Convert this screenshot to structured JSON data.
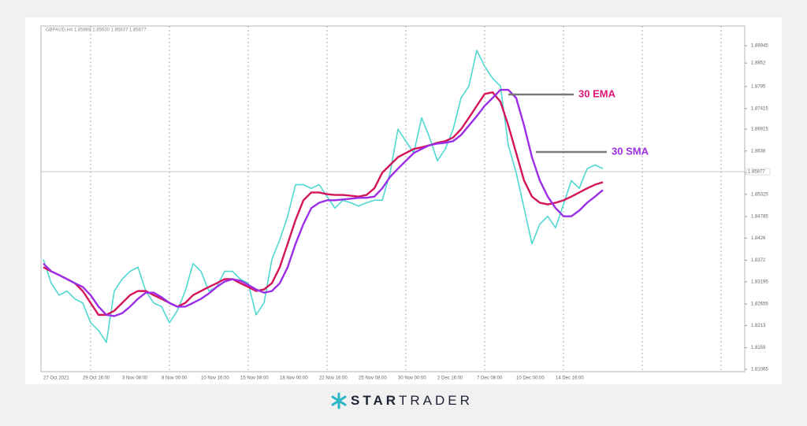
{
  "chart_data": {
    "type": "line",
    "header": "GBPAUD,H4 1.85868 1.85930 1.85837 1.85877",
    "categories": [
      "27 Oct 2021",
      null,
      null,
      null,
      null,
      "29 Oct 16:00",
      null,
      null,
      null,
      null,
      "3 Nov 08:00",
      null,
      null,
      null,
      null,
      "8 Nov 00:00",
      null,
      null,
      null,
      null,
      "10 Nov 16:00",
      null,
      null,
      null,
      null,
      "15 Nov 08:00",
      null,
      null,
      null,
      null,
      "18 Nov 00:00",
      null,
      null,
      null,
      null,
      "22 Nov 16:00",
      null,
      null,
      null,
      null,
      "25 Nov 08:00",
      null,
      null,
      null,
      null,
      "30 Nov 00:00",
      null,
      null,
      null,
      null,
      "2 Dec 16:00",
      null,
      null,
      null,
      null,
      "7 Dec 08:00",
      null,
      null,
      null,
      null,
      "10 Dec 00:00",
      null,
      null,
      null,
      null,
      "14 Dec 16:00",
      null,
      null,
      null,
      null,
      null,
      null
    ],
    "series": [
      {
        "name": "GBPAUD",
        "color": "#4fd8cf",
        "values": [
          1.8374,
          1.8316,
          1.8287,
          1.8297,
          1.8278,
          1.8268,
          1.822,
          1.8201,
          1.8172,
          1.8297,
          1.8326,
          1.8345,
          1.8355,
          1.8297,
          1.8268,
          1.8259,
          1.822,
          1.8249,
          1.8297,
          1.8364,
          1.8345,
          1.8297,
          1.8307,
          1.8345,
          1.8345,
          1.8326,
          1.8316,
          1.8239,
          1.8268,
          1.8374,
          1.8422,
          1.8479,
          1.8556,
          1.8556,
          1.8547,
          1.8556,
          1.8527,
          1.8499,
          1.8518,
          1.8512,
          1.8504,
          1.8512,
          1.8518,
          1.8518,
          1.8585,
          1.8691,
          1.8662,
          1.8633,
          1.8719,
          1.8671,
          1.8614,
          1.8643,
          1.8691,
          1.8767,
          1.8796,
          1.8883,
          1.8844,
          1.8815,
          1.8796,
          1.8652,
          1.8585,
          1.8499,
          1.8412,
          1.846,
          1.8479,
          1.8451,
          1.8508,
          1.8566,
          1.8547,
          1.8595,
          1.8604,
          1.8595
        ]
      },
      {
        "name": "30 EMA",
        "color": "#d4145a",
        "values": [
          1.8355,
          1.8345,
          1.8336,
          1.8326,
          1.8316,
          1.8297,
          1.8268,
          1.8239,
          1.8239,
          1.8249,
          1.8268,
          1.8287,
          1.8297,
          1.8297,
          1.8287,
          1.8278,
          1.8268,
          1.8259,
          1.8268,
          1.8287,
          1.8297,
          1.8307,
          1.8316,
          1.8326,
          1.8326,
          1.8316,
          1.8307,
          1.8297,
          1.8301,
          1.8316,
          1.8355,
          1.8412,
          1.847,
          1.8518,
          1.8537,
          1.8537,
          1.8533,
          1.8531,
          1.8531,
          1.8529,
          1.8527,
          1.8531,
          1.8547,
          1.8585,
          1.8604,
          1.8623,
          1.8633,
          1.8643,
          1.8647,
          1.8652,
          1.8658,
          1.8662,
          1.8671,
          1.8691,
          1.8719,
          1.8748,
          1.8777,
          1.8781,
          1.8758,
          1.87,
          1.8633,
          1.8566,
          1.8527,
          1.8512,
          1.8508,
          1.8512,
          1.8518,
          1.8527,
          1.8537,
          1.8547,
          1.8556,
          1.8562
        ]
      },
      {
        "name": "30 SMA",
        "color": "#9b2ee6",
        "values": [
          1.8364,
          1.8345,
          1.8336,
          1.8326,
          1.8316,
          1.8307,
          1.8287,
          1.8259,
          1.8239,
          1.8236,
          1.8243,
          1.8259,
          1.8278,
          1.8293,
          1.8293,
          1.8282,
          1.8268,
          1.8259,
          1.8259,
          1.8268,
          1.8278,
          1.8291,
          1.8307,
          1.832,
          1.8326,
          1.8322,
          1.8312,
          1.8301,
          1.8293,
          1.8297,
          1.8316,
          1.8355,
          1.8412,
          1.846,
          1.8499,
          1.8512,
          1.8518,
          1.8518,
          1.852,
          1.8522,
          1.8524,
          1.8524,
          1.8527,
          1.8547,
          1.8575,
          1.8595,
          1.8614,
          1.8633,
          1.8643,
          1.8652,
          1.8656,
          1.8658,
          1.8662,
          1.8677,
          1.87,
          1.8723,
          1.8748,
          1.8767,
          1.8787,
          1.8787,
          1.8767,
          1.87,
          1.8623,
          1.8566,
          1.8527,
          1.8499,
          1.8479,
          1.8479,
          1.8493,
          1.8512,
          1.8527,
          1.8543
        ]
      }
    ],
    "annotations": [
      {
        "text": "30 EMA",
        "color": "#e0157a"
      },
      {
        "text": "30 SMA",
        "color": "#9d2fe0"
      }
    ],
    "current_price": {
      "value": 1.85877,
      "label": "1.85877"
    },
    "ylim": [
      1.81007,
      1.89424
    ],
    "yticks": [
      1.81065,
      1.8159,
      1.8213,
      1.82655,
      1.83195,
      1.8372,
      1.8426,
      1.84785,
      1.85325,
      1.8585,
      1.8638,
      1.86915,
      1.87415,
      1.8795,
      1.8852,
      1.88945
    ],
    "logo": {
      "part1": "STAR",
      "part2": "TRADER"
    }
  }
}
